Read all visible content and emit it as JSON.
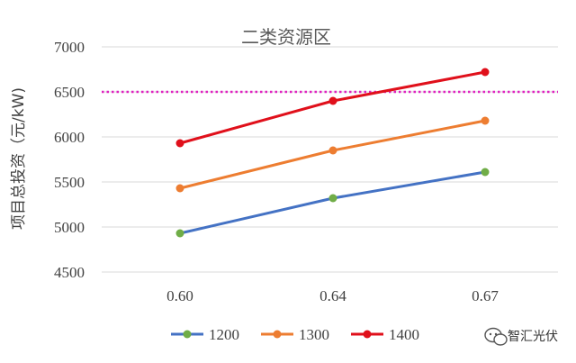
{
  "chart_data": {
    "type": "line",
    "title": "二类资源区",
    "xlabel": "",
    "ylabel": "项目总投资（元/kW)",
    "categories": [
      "0.60",
      "0.64",
      "0.67"
    ],
    "x": [
      0.6,
      0.64,
      0.67
    ],
    "ylim": [
      4500,
      7000
    ],
    "yticks": [
      4500,
      5000,
      5500,
      6000,
      6500,
      7000
    ],
    "grid": true,
    "legend_position": "bottom",
    "series": [
      {
        "name": "1200",
        "color": "#4472c4",
        "marker_color": "#70ad47",
        "values": [
          4930,
          5320,
          5610
        ]
      },
      {
        "name": "1300",
        "color": "#ed7d31",
        "marker_color": "#ed7d31",
        "values": [
          5430,
          5850,
          6180
        ]
      },
      {
        "name": "1400",
        "color": "#e0101b",
        "marker_color": "#e0101b",
        "values": [
          5930,
          6400,
          6720
        ]
      }
    ],
    "reference_line": {
      "value": 6500,
      "color": "#e020c0",
      "style": "dotted"
    }
  },
  "watermark": {
    "text": "智汇光伏",
    "icon": "wechat-icon"
  }
}
